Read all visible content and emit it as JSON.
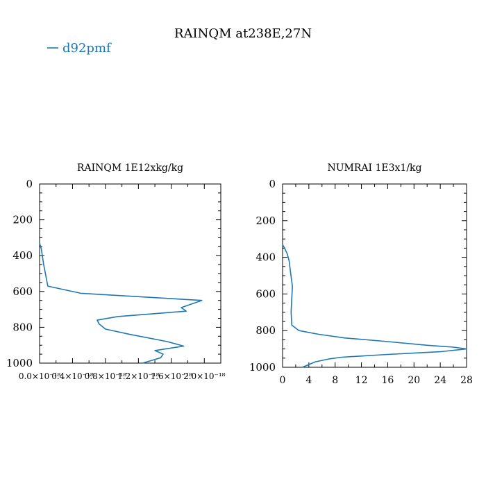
{
  "figure": {
    "title": "RAINQM at238E,27N",
    "legend": {
      "label": "d92pmf",
      "color": "#1f77b4",
      "position": "top-left"
    }
  },
  "chart_data": [
    {
      "type": "line",
      "title": "RAINQM  1E12xkg/kg",
      "xlabel": "",
      "ylabel": "",
      "xlim": [
        0.0,
        2.2e-18
      ],
      "ylim": [
        1000,
        0
      ],
      "x_ticks": [
        0.0,
        4e-19,
        8e-19,
        1.2e-18,
        1.6e-18,
        2e-18
      ],
      "x_tick_labels": [
        "0.0×10⁻¹⁸",
        "0.4×10⁻¹⁸",
        "0.8×10⁻¹⁸",
        "1.2×10⁻¹⁸",
        "1.6×10⁻¹⁸",
        "2.0×10⁻¹⁸"
      ],
      "y_ticks": [
        0,
        200,
        400,
        600,
        800,
        1000
      ],
      "y_tick_labels": [
        "0",
        "200",
        "400",
        "600",
        "800",
        "1000"
      ],
      "series": [
        {
          "name": "d92pmf",
          "color": "#1f77b4",
          "x": [
            0,
            2e-20,
            5e-20,
            1e-19,
            5e-19,
            1.97e-18,
            1.72e-18,
            1.78e-18,
            9.5e-19,
            7e-19,
            7.2e-19,
            8e-19,
            1.1e-18,
            1.55e-18,
            1.75e-18,
            1.4e-18,
            1.5e-18,
            1.47e-18,
            1.25e-18
          ],
          "y": [
            330,
            360,
            450,
            570,
            610,
            650,
            690,
            710,
            740,
            760,
            780,
            810,
            840,
            880,
            905,
            930,
            950,
            970,
            1000
          ]
        }
      ]
    },
    {
      "type": "line",
      "title": "NUMRAI  1E3x1/kg",
      "xlabel": "",
      "ylabel": "",
      "xlim": [
        0,
        28
      ],
      "ylim": [
        1000,
        0
      ],
      "x_ticks": [
        0,
        4,
        8,
        12,
        16,
        20,
        24,
        28
      ],
      "x_tick_labels": [
        "0",
        "4",
        "8",
        "12",
        "16",
        "20",
        "24",
        "28"
      ],
      "y_ticks": [
        0,
        200,
        400,
        600,
        800,
        1000
      ],
      "y_tick_labels": [
        "0",
        "200",
        "400",
        "600",
        "800",
        "1000"
      ],
      "series": [
        {
          "name": "d92pmf",
          "color": "#1f77b4",
          "x": [
            0,
            0.3,
            0.7,
            1.0,
            1.2,
            1.5,
            1.4,
            1.3,
            1.4,
            2.5,
            5.5,
            9.5,
            16,
            22,
            26,
            28,
            24,
            16,
            9,
            7,
            5,
            3
          ],
          "y": [
            330,
            350,
            380,
            420,
            480,
            560,
            620,
            700,
            770,
            800,
            820,
            840,
            860,
            880,
            890,
            900,
            915,
            930,
            945,
            955,
            970,
            1000
          ]
        }
      ]
    }
  ]
}
